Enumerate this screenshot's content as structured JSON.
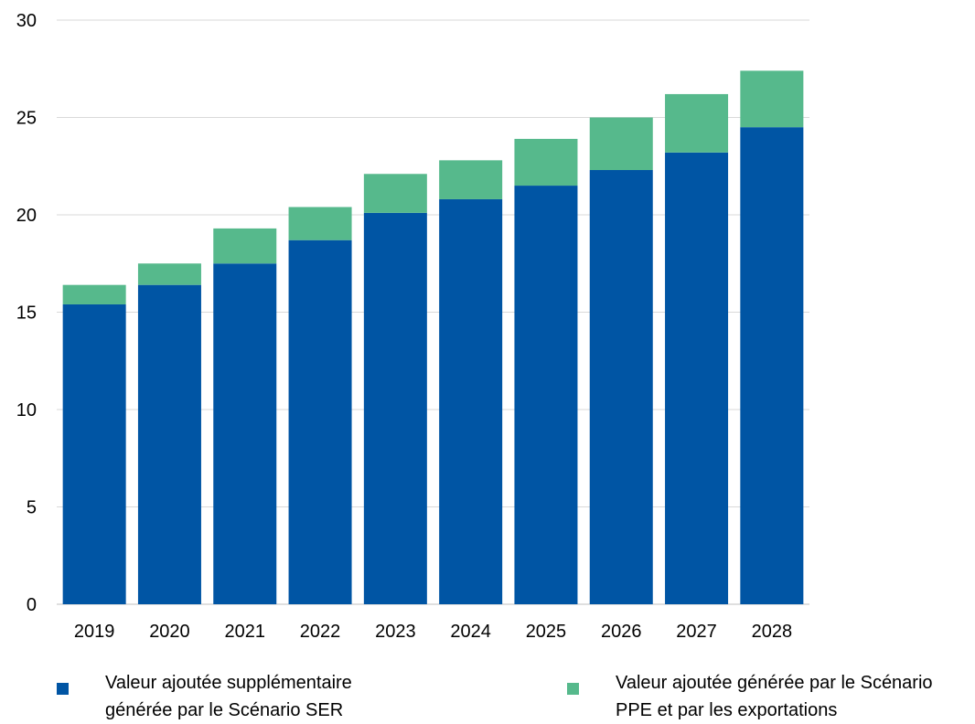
{
  "chart_data": {
    "type": "bar",
    "stacked": true,
    "title": "",
    "xlabel": "",
    "ylabel": "",
    "ylim": [
      0,
      30
    ],
    "yticks": [
      0,
      5,
      10,
      15,
      20,
      25,
      30
    ],
    "grid": true,
    "legend_position": "bottom",
    "categories": [
      "2019",
      "2020",
      "2021",
      "2022",
      "2023",
      "2024",
      "2025",
      "2026",
      "2027",
      "2028"
    ],
    "series": [
      {
        "name": "Valeur ajoutée supplémentaire générée par le Scénario SER",
        "color": "#0055A4",
        "values": [
          15.4,
          16.4,
          17.5,
          18.7,
          20.1,
          20.8,
          21.5,
          22.3,
          23.2,
          24.5
        ]
      },
      {
        "name": "Valeur ajoutée générée par le Scénario PPE et par les exportations",
        "color": "#56B98C",
        "values": [
          1.0,
          1.1,
          1.8,
          1.7,
          2.0,
          2.0,
          2.4,
          2.7,
          3.0,
          2.9
        ]
      }
    ]
  }
}
